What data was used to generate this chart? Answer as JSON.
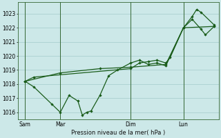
{
  "xlabel": "Pression niveau de la mer( hPa )",
  "background_color": "#cce8e8",
  "grid_color": "#aacfcf",
  "line_color": "#1a5c1a",
  "vline_color": "#336633",
  "ylim": [
    1015.5,
    1023.8
  ],
  "yticks": [
    1016,
    1017,
    1018,
    1019,
    1020,
    1021,
    1022,
    1023
  ],
  "xlim": [
    -0.3,
    22.5
  ],
  "day_labels": [
    "Sam",
    "Mar",
    "Dim",
    "Lun"
  ],
  "day_positions": [
    0.5,
    4.5,
    12.5,
    18.5
  ],
  "vline_positions": [
    0.5,
    4.5,
    12.5,
    18.5
  ],
  "series1_x": [
    0.5,
    1.5,
    3.5,
    4.5,
    5.5,
    6.5,
    7.0,
    7.5,
    8.0,
    9.0,
    10.0,
    11.0,
    12.5,
    13.5,
    14.5,
    15.5,
    16.5,
    18.5,
    19.5,
    20.0,
    20.5,
    22.0
  ],
  "series1_y": [
    1018.2,
    1017.8,
    1016.6,
    1016.0,
    1017.2,
    1016.8,
    1015.8,
    1016.0,
    1016.1,
    1017.2,
    1018.6,
    1019.0,
    1019.5,
    1019.7,
    1019.4,
    1019.5,
    1019.3,
    1022.0,
    1022.8,
    1023.3,
    1023.1,
    1022.2
  ],
  "series2_x": [
    0.5,
    1.5,
    12.5,
    13.5,
    14.5,
    15.5,
    16.5,
    17.0,
    18.5,
    19.5,
    20.5,
    21.0,
    22.0
  ],
  "series2_y": [
    1018.2,
    1018.5,
    1019.1,
    1019.5,
    1019.6,
    1019.7,
    1019.5,
    1019.9,
    1022.0,
    1022.6,
    1021.9,
    1021.5,
    1022.1
  ],
  "series3_x": [
    0.5,
    4.5,
    9.0,
    12.5,
    16.5,
    18.5,
    22.0
  ],
  "series3_y": [
    1018.2,
    1018.8,
    1019.1,
    1019.2,
    1019.4,
    1022.0,
    1022.1
  ]
}
